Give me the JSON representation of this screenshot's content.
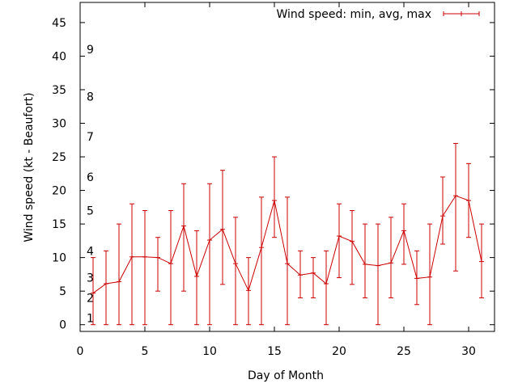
{
  "chart_data": {
    "type": "line",
    "title": "",
    "xlabel": "Day of Month",
    "ylabel": "Wind speed (kt - Beaufort)",
    "xlim": [
      0,
      32
    ],
    "ylim": [
      -1,
      48
    ],
    "x_ticks": [
      0,
      5,
      10,
      15,
      20,
      25,
      30
    ],
    "y_ticks": [
      0,
      5,
      10,
      15,
      20,
      25,
      30,
      35,
      40,
      45
    ],
    "grid": false,
    "legend_position": "top-right",
    "beaufort_labels": [
      {
        "label": "1",
        "kt": 1
      },
      {
        "label": "2",
        "kt": 4
      },
      {
        "label": "3",
        "kt": 7
      },
      {
        "label": "4",
        "kt": 11
      },
      {
        "label": "5",
        "kt": 17
      },
      {
        "label": "6",
        "kt": 22
      },
      {
        "label": "7",
        "kt": 28
      },
      {
        "label": "8",
        "kt": 34
      },
      {
        "label": "9",
        "kt": 41
      }
    ],
    "series": [
      {
        "name": "Wind speed: min, avg, max",
        "color": "#cc0000",
        "x": [
          1,
          2,
          3,
          4,
          5,
          6,
          7,
          8,
          9,
          10,
          11,
          12,
          13,
          14,
          15,
          16,
          17,
          18,
          19,
          20,
          21,
          22,
          23,
          24,
          25,
          26,
          27,
          28,
          29,
          30,
          31
        ],
        "avg": [
          4.7,
          6.1,
          6.4,
          10.1,
          10.1,
          10.0,
          9.1,
          14.7,
          7.2,
          12.6,
          14.2,
          9.1,
          5.1,
          11.5,
          18.5,
          9.1,
          7.4,
          7.7,
          6.1,
          13.2,
          12.4,
          9.0,
          8.8,
          9.2,
          14.0,
          6.9,
          7.1,
          16.2,
          19.2,
          18.5,
          9.4
        ],
        "min": [
          0,
          0,
          0,
          0,
          0,
          5,
          0,
          5,
          0,
          0,
          6,
          0,
          0,
          0,
          13,
          0,
          4,
          4,
          0,
          7,
          6,
          4,
          0,
          4,
          9,
          3,
          0,
          12,
          8,
          13,
          4
        ],
        "max": [
          10,
          11,
          15,
          18,
          17,
          13,
          17,
          21,
          14,
          21,
          23,
          16,
          10,
          19,
          25,
          19,
          11,
          10,
          11,
          18,
          17,
          15,
          15,
          16,
          18,
          11,
          15,
          22,
          27,
          24,
          15
        ]
      }
    ]
  }
}
